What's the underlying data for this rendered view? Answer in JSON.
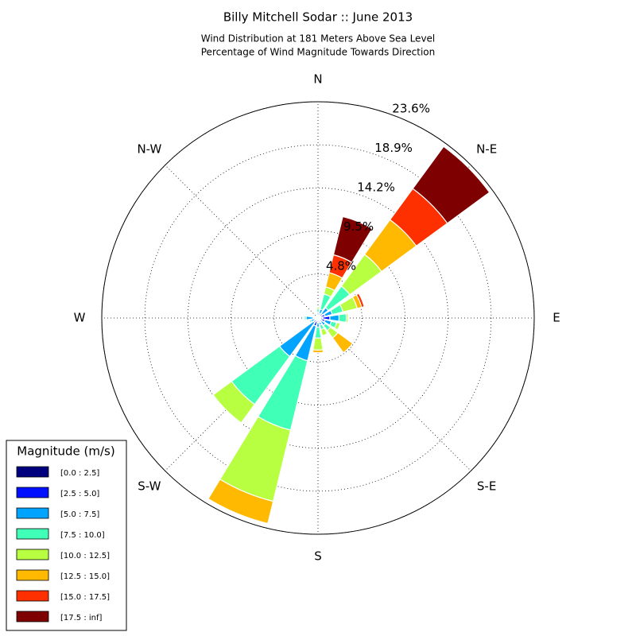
{
  "chart_data": {
    "type": "windrose",
    "title": "Billy Mitchell Sodar :: June 2013",
    "subtitle": [
      "Wind Distribution at 181 Meters Above Sea Level",
      "Percentage of Wind Magnitude Towards Direction"
    ],
    "categories": [
      "N",
      null,
      "N-E",
      null,
      "E",
      null,
      "S-E",
      null,
      "S",
      null,
      "S-W",
      null,
      "W",
      null,
      "N-W",
      null
    ],
    "rlim": [
      0,
      23.6
    ],
    "rticks": [
      {
        "value": 4.8,
        "label": "4.8%"
      },
      {
        "value": 9.5,
        "label": "9.5%"
      },
      {
        "value": 14.2,
        "label": "14.2%"
      },
      {
        "value": 18.9,
        "label": "18.9%"
      },
      {
        "value": 23.6,
        "label": "23.6%"
      }
    ],
    "grid": true,
    "legend_title": "Magnitude (m/s)",
    "legend_position": "lower left",
    "series": [
      {
        "name": "[0.0 : 2.5]",
        "color": "#00007f",
        "values": [
          0.1,
          0.2,
          0.2,
          0.3,
          0.5,
          0.3,
          0.2,
          0.2,
          0.2,
          0.3,
          0.2,
          0.1,
          0.2,
          0.1,
          0.1,
          0.1
        ]
      },
      {
        "name": "[2.5 : 5.0]",
        "color": "#0010ff",
        "values": [
          0.2,
          0.3,
          0.4,
          0.5,
          0.8,
          0.5,
          0.3,
          0.3,
          0.3,
          0.6,
          0.4,
          0.2,
          0.3,
          0.1,
          0.1,
          0.1
        ]
      },
      {
        "name": "[5.0 : 7.5]",
        "color": "#00a4ff",
        "values": [
          0.3,
          0.5,
          0.8,
          0.8,
          1.0,
          0.7,
          0.5,
          0.3,
          0.5,
          3.9,
          4.6,
          0.5,
          0.8,
          0.1,
          0.1,
          0.1
        ]
      },
      {
        "name": "[7.5 : 10.0]",
        "color": "#40ffb7",
        "values": [
          0.4,
          1.7,
          2.9,
          1.2,
          0.8,
          0.6,
          0.7,
          0.5,
          1.2,
          7.8,
          6.5,
          0.2,
          0.2,
          0,
          0,
          0
        ]
      },
      {
        "name": "[10.0 : 12.5]",
        "color": "#b7ff40",
        "values": [
          0.2,
          0.8,
          4.3,
          1.6,
          0.2,
          0.4,
          1.0,
          0.7,
          1.3,
          8.0,
          2.5,
          0,
          0,
          0,
          0,
          0
        ]
      },
      {
        "name": "[12.5 : 15.0]",
        "color": "#ffb900",
        "values": [
          0,
          1.6,
          4.7,
          0.5,
          0,
          0,
          2.0,
          0,
          0.3,
          2.5,
          0,
          0,
          0,
          0,
          0,
          0
        ]
      },
      {
        "name": "[15.0 : 17.5]",
        "color": "#ff3000",
        "values": [
          0,
          2.0,
          4.2,
          0.3,
          0,
          0,
          0,
          0,
          0,
          0,
          0,
          0,
          0,
          0,
          0,
          0
        ]
      },
      {
        "name": "[17.5 : inf]",
        "color": "#7f0000",
        "values": [
          0,
          4.3,
          5.7,
          0,
          0,
          0,
          0,
          0,
          0,
          0,
          0,
          0,
          0,
          0,
          0,
          0
        ]
      }
    ]
  }
}
